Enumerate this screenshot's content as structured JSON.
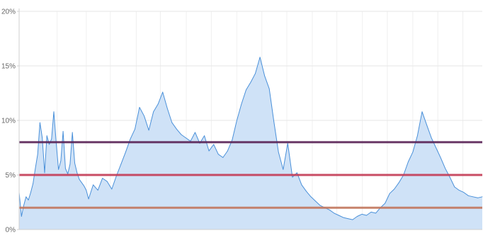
{
  "chart_data": {
    "type": "area",
    "title": "",
    "xlabel": "",
    "ylabel": "",
    "ylim": [
      0,
      20
    ],
    "y_ticks": [
      {
        "value": 0,
        "label": "0%"
      },
      {
        "value": 5,
        "label": "5%"
      },
      {
        "value": 10,
        "label": "10%"
      },
      {
        "value": 15,
        "label": "15%"
      },
      {
        "value": 20,
        "label": "20%"
      }
    ],
    "grid": true,
    "legend": "none",
    "x_range": [
      0,
      100
    ],
    "x_ticks_unlabeled": [
      0,
      8.2,
      14.5,
      19.7,
      25.3,
      30.5,
      36.1,
      41.5,
      47.0,
      52.4,
      57.8,
      63.3,
      68.6,
      74.1,
      79.5,
      85.0,
      90.4,
      95.8
    ],
    "series": [
      {
        "color": "#4a90d9",
        "fill": "#cfe2f7",
        "x": [
          0,
          0.5,
          1.0,
          1.5,
          2.0,
          2.5,
          3.0,
          3.5,
          4.0,
          4.5,
          5.0,
          5.5,
          6.0,
          6.5,
          7.0,
          7.5,
          8.0,
          8.5,
          9.0,
          9.5,
          10.0,
          10.5,
          11.0,
          11.5,
          12.0,
          12.5,
          13.0,
          13.5,
          14.0,
          14.5,
          15.0,
          16.0,
          17.0,
          18.0,
          19.0,
          20.0,
          21.0,
          22.0,
          23.0,
          24.0,
          25.0,
          26.0,
          27.0,
          28.0,
          29.0,
          30.0,
          31.0,
          32.0,
          33.0,
          34.0,
          35.0,
          36.0,
          37.0,
          38.0,
          39.0,
          40.0,
          41.0,
          42.0,
          43.0,
          44.0,
          45.0,
          46.0,
          47.0,
          48.0,
          49.0,
          50.0,
          51.0,
          52.0,
          53.0,
          54.0,
          55.0,
          56.0,
          57.0,
          58.0,
          59.0,
          60.0,
          61.0,
          62.0,
          63.0,
          64.0,
          65.0,
          66.0,
          67.0,
          68.0,
          69.0,
          70.0,
          71.0,
          72.0,
          73.0,
          74.0,
          75.0,
          76.0,
          77.0,
          78.0,
          79.0,
          80.0,
          81.0,
          82.0,
          83.0,
          84.0,
          85.0,
          86.0,
          87.0,
          88.0,
          89.0,
          90.0,
          91.0,
          92.0,
          93.0,
          94.0,
          95.0,
          96.0,
          97.0,
          98.0,
          99.0,
          100.0
        ],
        "y": [
          3.4,
          1.2,
          2.2,
          3.0,
          2.7,
          3.4,
          4.2,
          5.6,
          6.9,
          9.8,
          8.4,
          5.2,
          8.6,
          7.8,
          8.3,
          10.8,
          8.0,
          5.5,
          6.3,
          9.0,
          5.6,
          5.1,
          6.0,
          8.9,
          6.1,
          5.2,
          4.6,
          4.3,
          4.0,
          3.6,
          2.8,
          4.1,
          3.6,
          4.7,
          4.4,
          3.7,
          4.9,
          6.0,
          7.1,
          8.3,
          9.2,
          11.2,
          10.4,
          9.1,
          10.8,
          11.5,
          12.6,
          11.1,
          9.8,
          9.2,
          8.7,
          8.4,
          8.1,
          8.9,
          7.9,
          8.6,
          7.2,
          7.8,
          6.9,
          6.6,
          7.2,
          8.2,
          10.0,
          11.5,
          12.8,
          13.5,
          14.3,
          15.8,
          14.1,
          12.9,
          9.9,
          7.1,
          5.5,
          7.9,
          4.8,
          5.2,
          4.1,
          3.5,
          3.0,
          2.6,
          2.2,
          2.0,
          1.8,
          1.5,
          1.3,
          1.1,
          1.0,
          0.9,
          1.2,
          1.4,
          1.3,
          1.6,
          1.5,
          2.0,
          2.4,
          3.3,
          3.7,
          4.3,
          5.0,
          6.2,
          7.1,
          8.6,
          10.8,
          9.6,
          8.4,
          7.5,
          6.6,
          5.6,
          4.8,
          3.9,
          3.6,
          3.4,
          3.1,
          3.0,
          2.9,
          3.0
        ]
      }
    ],
    "reference_lines": [
      {
        "value": 8.0,
        "color": "#5a2457"
      },
      {
        "value": 5.0,
        "color": "#c43a55"
      },
      {
        "value": 2.0,
        "color": "#c2765d"
      }
    ]
  }
}
